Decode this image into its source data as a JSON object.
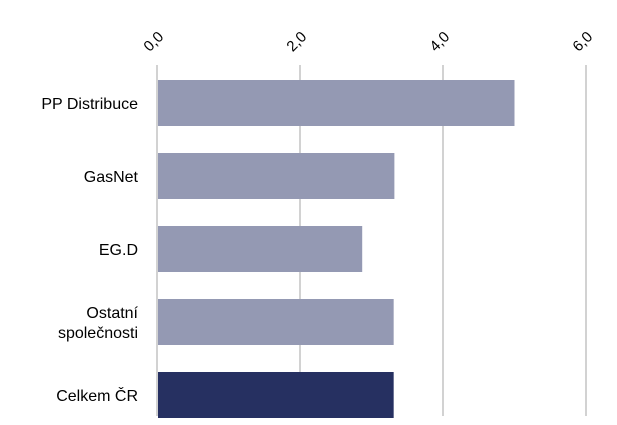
{
  "chart_data": {
    "type": "bar",
    "orientation": "horizontal",
    "title": "",
    "xlabel": "",
    "ylabel": "",
    "xlim": [
      0,
      6
    ],
    "x_ticks": [
      "0,0",
      "2,0",
      "4,0",
      "6,0"
    ],
    "tick_values": [
      0,
      2,
      4,
      6
    ],
    "tick_label_position": "top",
    "grid": "vertical",
    "legend": "none",
    "categories": [
      [
        "PP Distribuce"
      ],
      [
        "GasNet"
      ],
      [
        "EG.D"
      ],
      [
        "Ostatní",
        "společnosti"
      ],
      [
        "Celkem ČR"
      ]
    ],
    "values": [
      5.0,
      3.32,
      2.87,
      3.31,
      3.31
    ],
    "colors": [
      "#9499b3",
      "#9499b3",
      "#9499b3",
      "#9499b3",
      "#263061"
    ],
    "gridline_color": "#a6a6a6"
  }
}
